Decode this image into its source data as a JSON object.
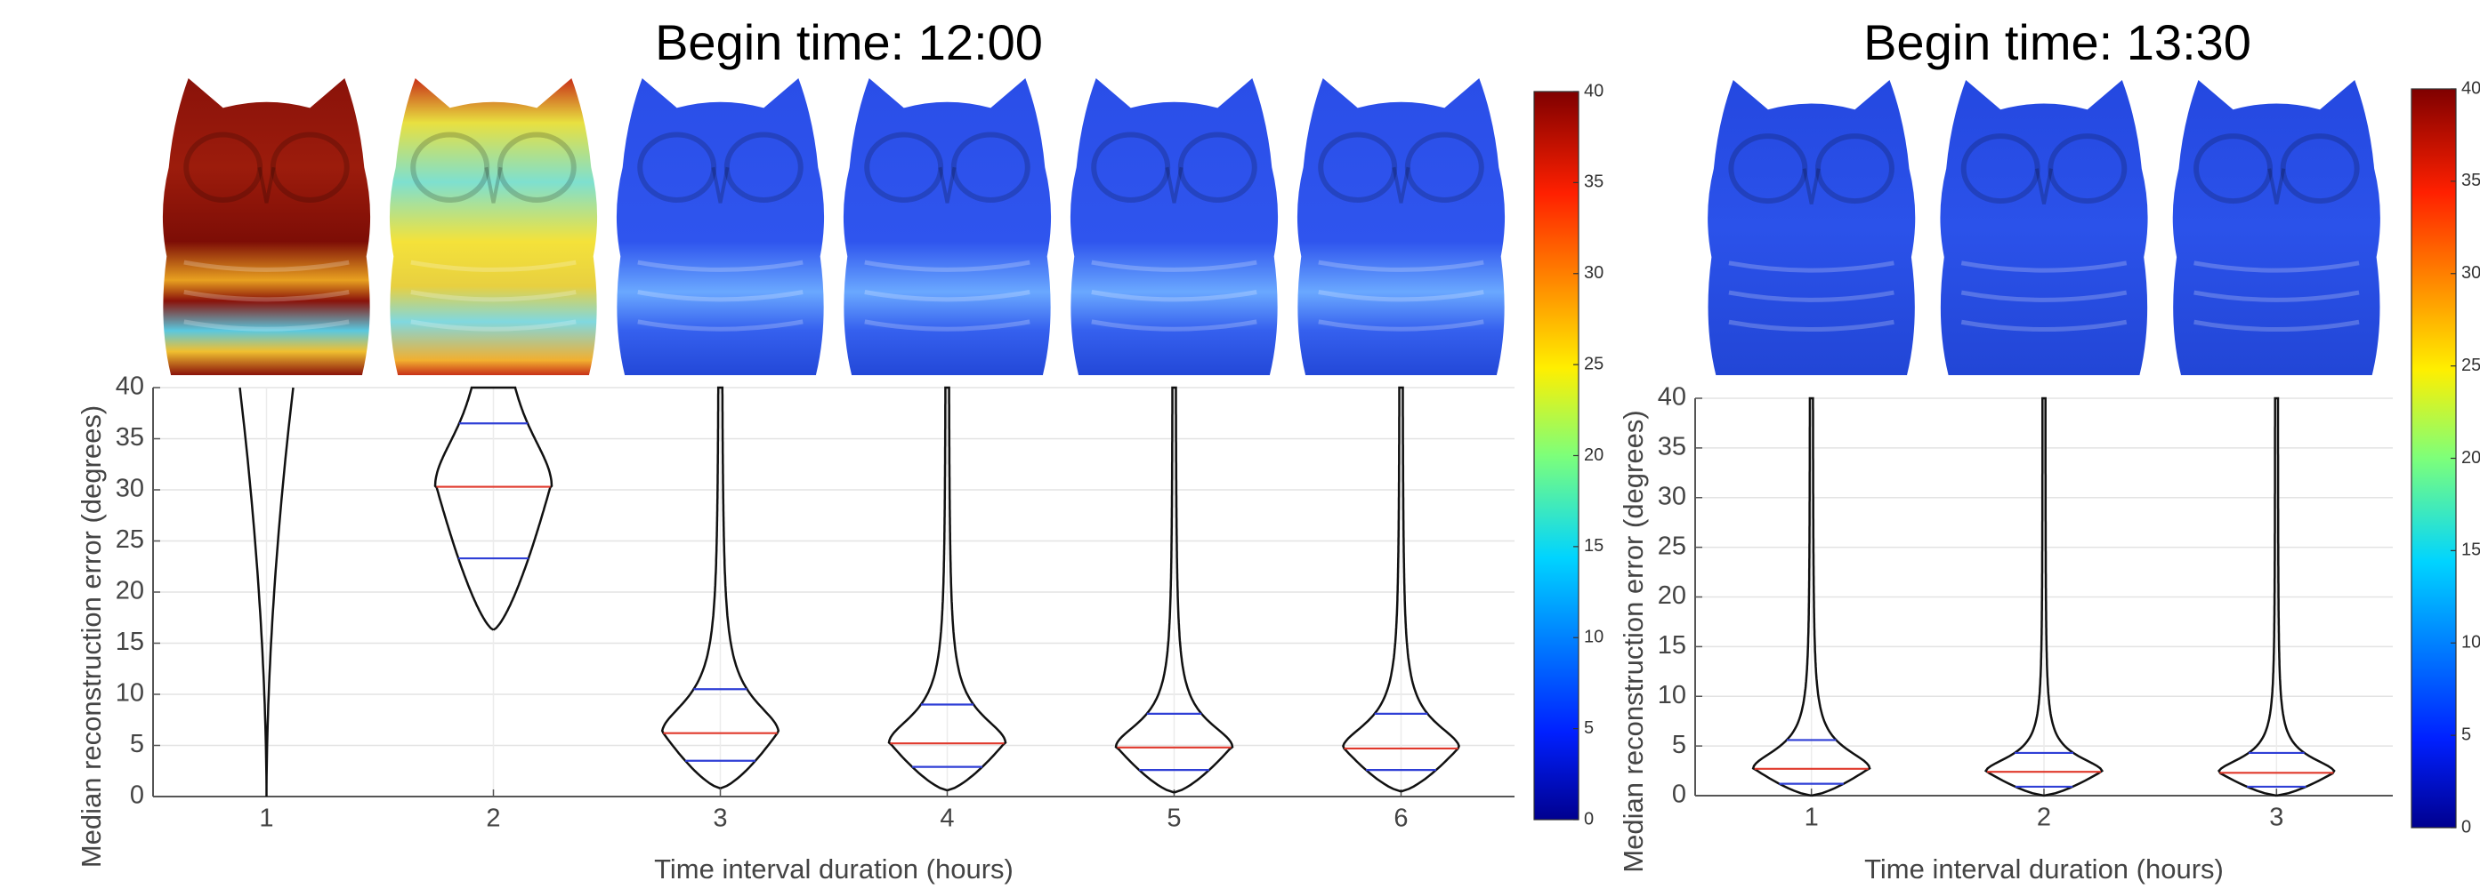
{
  "chart_data": [
    {
      "type": "violin",
      "title": "Begin time: 12:00",
      "xlabel": "Time interval duration (hours)",
      "ylabel": "Median reconstruction error (degrees)",
      "categories": [
        "1",
        "2",
        "3",
        "4",
        "5",
        "6"
      ],
      "median": [
        null,
        30.3,
        6.2,
        5.2,
        4.8,
        4.7
      ],
      "q1": [
        null,
        23.3,
        3.5,
        2.9,
        2.6,
        2.6
      ],
      "q3": [
        null,
        36.5,
        10.5,
        9.0,
        8.1,
        8.1
      ],
      "median_color": "#e0392c",
      "quartile_color": "#2f3fd6",
      "ylim": [
        0,
        40
      ],
      "yticks": [
        0,
        5,
        10,
        15,
        20,
        25,
        30,
        35,
        40
      ],
      "grid": true,
      "colorbar": {
        "lim": [
          0,
          40
        ],
        "ticks": [
          0,
          5,
          10,
          15,
          20,
          25,
          30,
          35,
          40
        ]
      }
    },
    {
      "type": "violin",
      "title": "Begin time: 13:30",
      "xlabel": "Time interval duration (hours)",
      "ylabel": "Median reconstruction error (degrees)",
      "categories": [
        "1",
        "2",
        "3"
      ],
      "median": [
        2.7,
        2.4,
        2.3
      ],
      "q1": [
        1.2,
        0.9,
        0.9
      ],
      "q3": [
        5.6,
        4.3,
        4.3
      ],
      "median_color": "#e0392c",
      "quartile_color": "#2f3fd6",
      "ylim": [
        0,
        40
      ],
      "yticks": [
        0,
        5,
        10,
        15,
        20,
        25,
        30,
        35,
        40
      ],
      "grid": true,
      "colorbar": {
        "lim": [
          0,
          40
        ],
        "ticks": [
          0,
          5,
          10,
          15,
          20,
          25,
          30,
          35,
          40
        ]
      }
    }
  ]
}
